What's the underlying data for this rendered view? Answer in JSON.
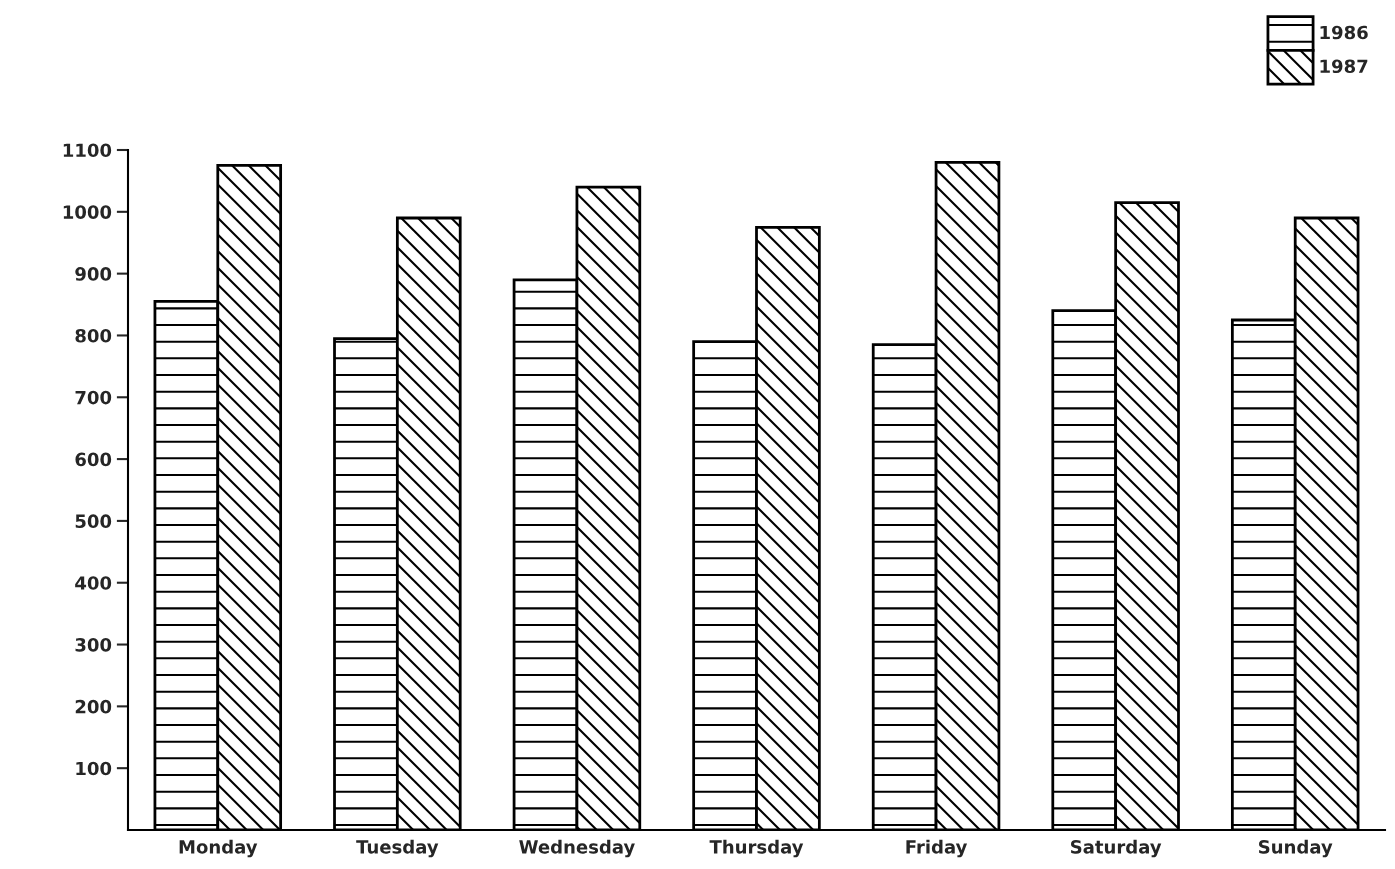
{
  "chart_data": {
    "type": "bar",
    "categories": [
      "Monday",
      "Tuesday",
      "Wednesday",
      "Thursday",
      "Friday",
      "Saturday",
      "Sunday"
    ],
    "series": [
      {
        "name": "1986",
        "color": "#000000",
        "values": [
          855,
          795,
          890,
          790,
          785,
          840,
          825
        ]
      },
      {
        "name": "1987",
        "color": "#000000",
        "values": [
          1075,
          990,
          1040,
          975,
          1080,
          1015,
          990
        ]
      }
    ],
    "ylim": [
      0,
      1100
    ],
    "yticks": [
      100,
      200,
      300,
      400,
      500,
      600,
      700,
      800,
      900,
      1000,
      1100
    ],
    "grid": false,
    "legend": "top right"
  }
}
